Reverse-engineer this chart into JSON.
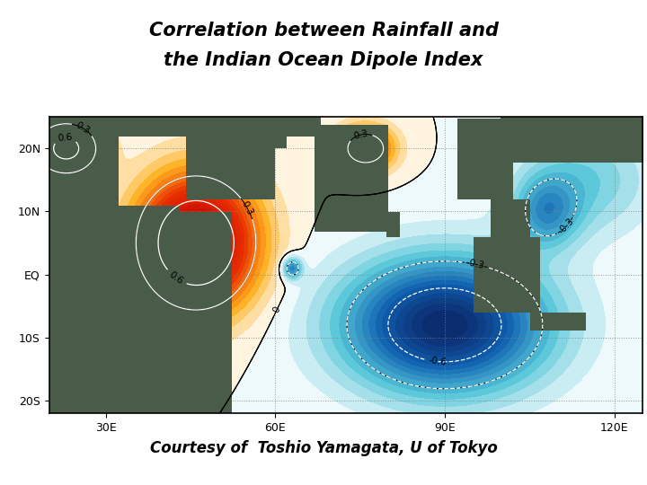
{
  "title_line1": "Correlation between Rainfall and",
  "title_line2": "the Indian Ocean Dipole Index",
  "subtitle": "Courtesy of  Toshio Yamagata, U of Tokyo",
  "lon_min": 20,
  "lon_max": 125,
  "lat_min": -22,
  "lat_max": 25,
  "xticks": [
    30,
    60,
    90,
    120
  ],
  "xtick_labels": [
    "30E",
    "60E",
    "90E",
    "120E"
  ],
  "yticks": [
    -20,
    -10,
    0,
    10,
    20
  ],
  "ytick_labels": [
    "20S",
    "10S",
    "EQ",
    "10N",
    "20N"
  ],
  "background_color": "#ffffff",
  "land_r": 0.29,
  "land_g": 0.36,
  "land_b": 0.29
}
